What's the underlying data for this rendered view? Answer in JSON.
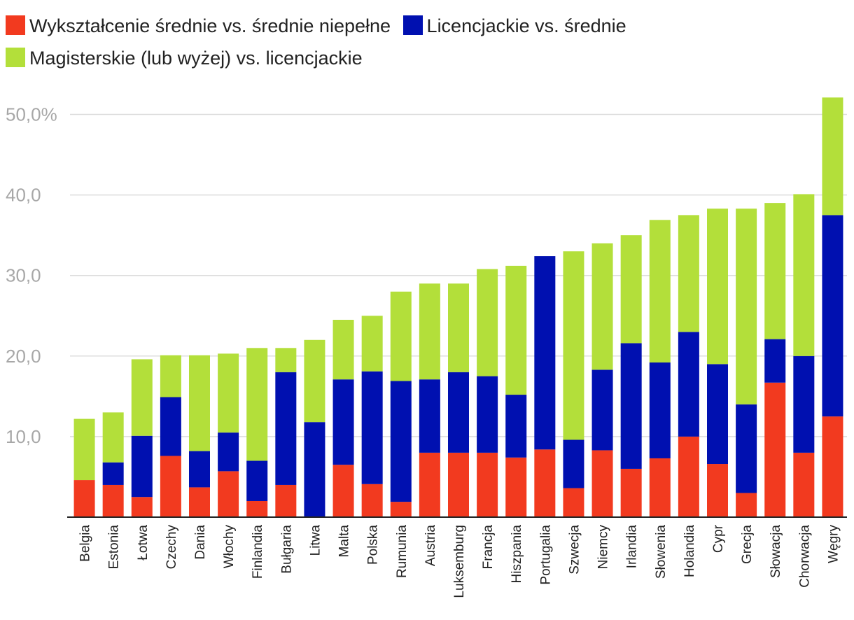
{
  "chart_data": {
    "type": "bar",
    "stacked": true,
    "ylim": [
      0,
      50
    ],
    "yticks": [
      {
        "value": 10,
        "label": "10,0"
      },
      {
        "value": 20,
        "label": "20,0"
      },
      {
        "value": 30,
        "label": "30,0"
      },
      {
        "value": 40,
        "label": "40,0"
      },
      {
        "value": 50,
        "label": "50,0%"
      }
    ],
    "categories": [
      "Belgia",
      "Estonia",
      "Łotwa",
      "Czechy",
      "Dania",
      "Włochy",
      "Finlandia",
      "Bułgaria",
      "Litwa",
      "Malta",
      "Polska",
      "Rumunia",
      "Austria",
      "Luksemburg",
      "Francja",
      "Hiszpania",
      "Portugalia",
      "Szwecja",
      "Niemcy",
      "Irlandia",
      "Słowenia",
      "Holandia",
      "Cypr",
      "Grecja",
      "Słowacja",
      "Chorwacja",
      "Węgry"
    ],
    "series": [
      {
        "name": "Wykształcenie średnie vs. średnie niepełne",
        "color": "#f23a1f",
        "values": [
          4.6,
          4.0,
          2.5,
          7.6,
          3.7,
          5.7,
          2.0,
          4.0,
          0.0,
          6.5,
          4.1,
          1.9,
          8.0,
          8.0,
          8.0,
          7.4,
          8.4,
          3.6,
          8.3,
          6.0,
          7.3,
          10.0,
          6.6,
          3.0,
          16.7,
          8.0,
          12.5
        ]
      },
      {
        "name": "Licencjackie vs. średnie",
        "color": "#0010b0",
        "values": [
          0.0,
          2.8,
          7.6,
          7.3,
          4.5,
          4.8,
          5.0,
          14.0,
          11.8,
          10.6,
          14.0,
          15.0,
          9.1,
          10.0,
          9.5,
          7.8,
          24.0,
          6.0,
          10.0,
          15.6,
          11.9,
          13.0,
          12.4,
          11.0,
          5.4,
          12.0,
          25.0
        ]
      },
      {
        "name": "Magisterskie (lub wyżej) vs. licencjackie",
        "color": "#b3df3a",
        "values": [
          7.6,
          6.2,
          9.5,
          5.2,
          11.9,
          9.8,
          14.0,
          3.0,
          10.2,
          7.4,
          6.9,
          11.1,
          11.9,
          11.0,
          13.3,
          16.0,
          0.0,
          23.4,
          15.7,
          13.4,
          17.7,
          14.5,
          19.3,
          24.3,
          16.9,
          20.1,
          14.6
        ]
      }
    ]
  }
}
